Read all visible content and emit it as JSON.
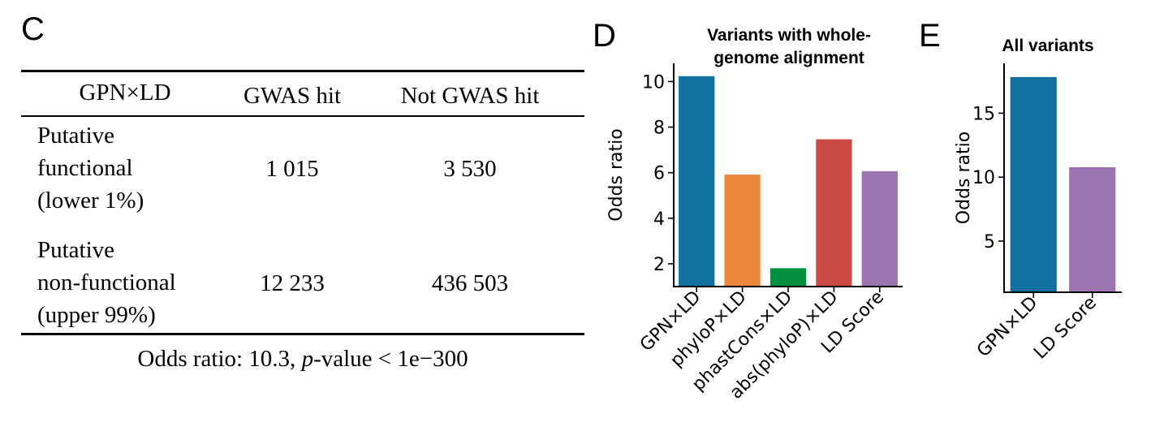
{
  "panels": {
    "C": {
      "letter": "C",
      "table": {
        "headers": [
          "GPN×LD",
          "GWAS hit",
          "Not GWAS hit"
        ],
        "rows": [
          {
            "label_lines": [
              "Putative",
              "functional",
              "(lower 1%)"
            ],
            "gwas_hit": "1 015",
            "not_gwas_hit": "3 530"
          },
          {
            "label_lines": [
              "Putative",
              "non-functional",
              "(upper 99%)"
            ],
            "gwas_hit": "12 233",
            "not_gwas_hit": "436 503"
          }
        ]
      },
      "caption": {
        "prefix": "Odds ratio:  10.3, ",
        "p": "p",
        "suffix": "-value < 1e−300"
      }
    },
    "D": {
      "letter": "D"
    },
    "E": {
      "letter": "E"
    }
  },
  "chart_data": [
    {
      "type": "bar",
      "panel": "D",
      "title": "Variants with whole-\ngenome alignment",
      "title_lines": [
        "Variants with whole-",
        "genome alignment"
      ],
      "xlabel": "",
      "ylabel": "Odds ratio",
      "categories": [
        "GPN×LD",
        "phyloP×LD",
        "phastCons×LD",
        "abs(phyloP)×LD",
        "LD Score"
      ],
      "values": [
        10.25,
        5.93,
        1.82,
        7.48,
        6.08
      ],
      "colors": [
        "#1170a0",
        "#eb883d",
        "#009040",
        "#cc4a45",
        "#9b74b0"
      ],
      "yticks": [
        2,
        4,
        6,
        8,
        10
      ],
      "ylim": [
        1.0,
        10.8
      ],
      "grid": false
    },
    {
      "type": "bar",
      "panel": "E",
      "title": "All variants",
      "title_lines": [
        "All variants"
      ],
      "xlabel": "",
      "ylabel": "Odds ratio",
      "categories": [
        "GPN×LD",
        "LD Score"
      ],
      "values": [
        17.85,
        10.8
      ],
      "colors": [
        "#1170a0",
        "#9b74b0"
      ],
      "yticks": [
        5,
        10,
        15
      ],
      "ylim": [
        1.0,
        18.9
      ],
      "grid": false
    }
  ]
}
